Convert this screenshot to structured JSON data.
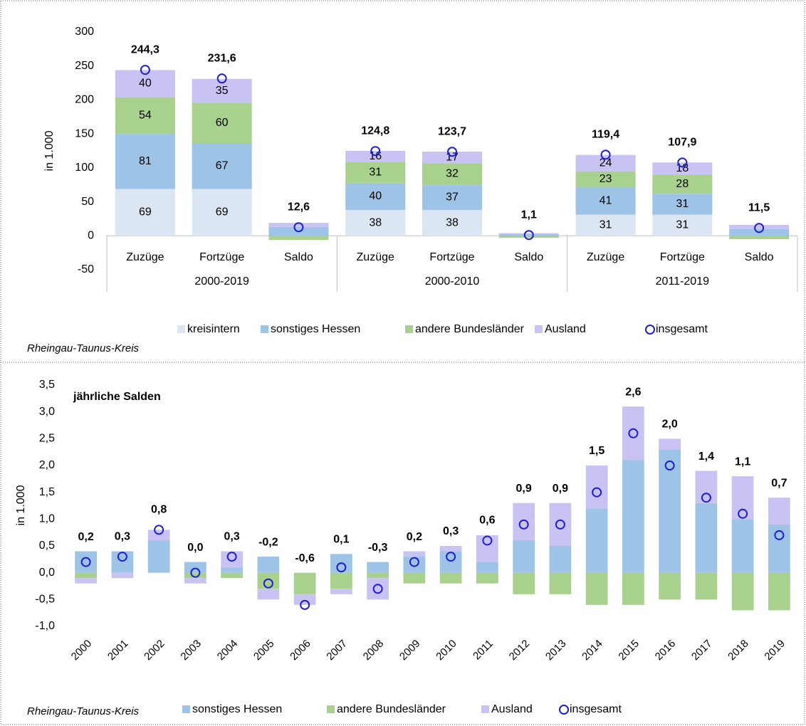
{
  "chart_data": [
    {
      "type": "stacked_bar",
      "ylabel": "in 1.000",
      "note": "Rheingau-Taunus-Kreis",
      "categories": [
        "Zuzüge",
        "Fortzüge",
        "Saldo",
        "Zuzüge",
        "Fortzüge",
        "Saldo",
        "Zuzüge",
        "Fortzüge",
        "Saldo"
      ],
      "groups": [
        "2000-2019",
        "2000-2010",
        "2011-2019"
      ],
      "ylim": [
        -50,
        300
      ],
      "yticks": [
        -50,
        0,
        50,
        100,
        150,
        200,
        250,
        300
      ],
      "grid": false,
      "series": [
        {
          "name": "kreisintern",
          "color": "#dce6f2",
          "values": [
            69,
            69,
            0,
            38,
            38,
            0,
            31,
            31,
            0
          ],
          "value_labels": [
            "69",
            "69",
            null,
            "38",
            "38",
            null,
            "31",
            "31",
            null
          ]
        },
        {
          "name": "sonstiges Hessen",
          "color": "#9dc3e6",
          "values": [
            81,
            67,
            13,
            40,
            37,
            2.5,
            41,
            31,
            10
          ],
          "value_labels": [
            "81",
            "67",
            null,
            "40",
            "37",
            null,
            "41",
            "31",
            null
          ]
        },
        {
          "name": "andere Bundesländer",
          "color": "#a9d18e",
          "values": [
            54,
            60,
            -6,
            31,
            32,
            -3,
            23,
            28,
            -5
          ],
          "value_labels": [
            "54",
            "60",
            null,
            "31",
            "32",
            null,
            "23",
            "28",
            null
          ]
        },
        {
          "name": "Ausland",
          "color": "#c9c3f3",
          "values": [
            40,
            35,
            6,
            16,
            17,
            1.5,
            24,
            18,
            6
          ],
          "value_labels": [
            "40",
            "35",
            null,
            "16",
            "17",
            null,
            "24",
            "18",
            null
          ]
        },
        {
          "name": "insgesamt",
          "type": "marker",
          "color": "#1f1fd0",
          "label_color": "#2a2ad9",
          "values": [
            244.3,
            231.6,
            12.6,
            124.8,
            123.7,
            1.1,
            119.4,
            107.9,
            11.5
          ],
          "value_labels": [
            "244,3",
            "231,6",
            "12,6",
            "124,8",
            "123,7",
            "1,1",
            "119,4",
            "107,9",
            "11,5"
          ]
        }
      ]
    },
    {
      "type": "stacked_bar",
      "title": "jährliche Salden",
      "ylabel": "in 1.000",
      "note": "Rheingau-Taunus-Kreis",
      "categories": [
        "2000",
        "2001",
        "2002",
        "2003",
        "2004",
        "2005",
        "2006",
        "2007",
        "2008",
        "2009",
        "2010",
        "2011",
        "2012",
        "2013",
        "2014",
        "2015",
        "2016",
        "2017",
        "2018",
        "2019"
      ],
      "ylim": [
        -1,
        3.5
      ],
      "yticks": [
        {
          "value": -1,
          "label": "-1,0"
        },
        {
          "value": -0.5,
          "label": "-0,5"
        },
        {
          "value": 0,
          "label": "0,0"
        },
        {
          "value": 0.5,
          "label": "0,5"
        },
        {
          "value": 1,
          "label": "1,0"
        },
        {
          "value": 1.5,
          "label": "1,5"
        },
        {
          "value": 2,
          "label": "2,0"
        },
        {
          "value": 2.5,
          "label": "2,5"
        },
        {
          "value": 3,
          "label": "3,0"
        },
        {
          "value": 3.5,
          "label": "3,5"
        }
      ],
      "grid": false,
      "negative_label_color": "#e00000",
      "series": [
        {
          "name": "sonstiges Hessen",
          "color": "#9dc3e6",
          "values": [
            0.4,
            0.4,
            0.6,
            0.2,
            0.1,
            0.3,
            0,
            0.35,
            0.2,
            0.3,
            0.4,
            0.2,
            0.6,
            0.5,
            1.2,
            2.1,
            2.3,
            1.3,
            1.0,
            0.9
          ]
        },
        {
          "name": "andere Bundesländer",
          "color": "#a9d18e",
          "values": [
            -0.1,
            0,
            0,
            -0.1,
            -0.1,
            -0.3,
            -0.4,
            -0.3,
            -0.1,
            -0.2,
            -0.2,
            -0.2,
            -0.4,
            -0.4,
            -0.6,
            -0.6,
            -0.5,
            -0.5,
            -0.7,
            -0.7
          ]
        },
        {
          "name": "Ausland",
          "color": "#c9c3f3",
          "values": [
            -0.1,
            -0.1,
            0.2,
            -0.1,
            0.3,
            -0.2,
            -0.2,
            -0.1,
            -0.4,
            0.1,
            0.1,
            0.5,
            0.7,
            0.8,
            0.8,
            1.0,
            0.2,
            0.6,
            0.8,
            0.5
          ]
        },
        {
          "name": "insgesamt",
          "type": "marker",
          "color": "#1f1fd0",
          "label_color": "#2a2ad9",
          "values": [
            0.2,
            0.3,
            0.8,
            0.0,
            0.3,
            -0.2,
            -0.6,
            0.1,
            -0.3,
            0.2,
            0.3,
            0.6,
            0.9,
            0.9,
            1.5,
            2.6,
            2.0,
            1.4,
            1.1,
            0.7
          ],
          "value_labels": [
            "0,2",
            "0,3",
            "0,8",
            "0,0",
            "0,3",
            "-0,2",
            "-0,6",
            "0,1",
            "-0,3",
            "0,2",
            "0,3",
            "0,6",
            "0,9",
            "0,9",
            "1,5",
            "2,6",
            "2,0",
            "1,4",
            "1,1",
            "0,7"
          ]
        }
      ]
    }
  ]
}
